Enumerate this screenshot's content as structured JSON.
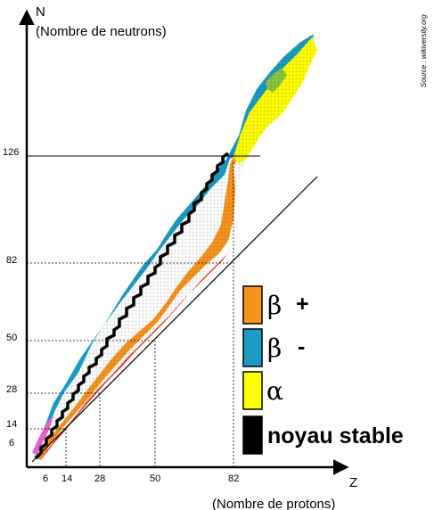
{
  "labels": {
    "y_letter": "N",
    "y_caption": "(Nombre de neutrons)",
    "x_letter": "Z",
    "x_caption": "(Nombre de protons)",
    "source": "Source : wikiversity.org"
  },
  "axes": {
    "x_ticks": [
      "6",
      "14",
      "28",
      "50",
      "82"
    ],
    "y_ticks": [
      "6",
      "14",
      "28",
      "50",
      "82",
      "126"
    ]
  },
  "legend": [
    {
      "key": "beta_plus",
      "symbol": "β",
      "suffix": "+",
      "color": "#f7941d"
    },
    {
      "key": "beta_minus",
      "symbol": "β",
      "suffix": "-",
      "color": "#1a9bc4"
    },
    {
      "key": "alpha",
      "symbol": "α",
      "suffix": "",
      "color": "#ffff00"
    },
    {
      "key": "stable",
      "symbol": "",
      "suffix": "noyau stable",
      "color": "#000000"
    }
  ],
  "colors": {
    "beta_plus": "#f7941d",
    "beta_minus": "#1a9bc4",
    "alpha": "#ffff00",
    "stable": "#000000",
    "red_fringe": "#e8402a",
    "pink_fringe": "#e65fd0",
    "green_fringe": "#8cc63f"
  }
}
